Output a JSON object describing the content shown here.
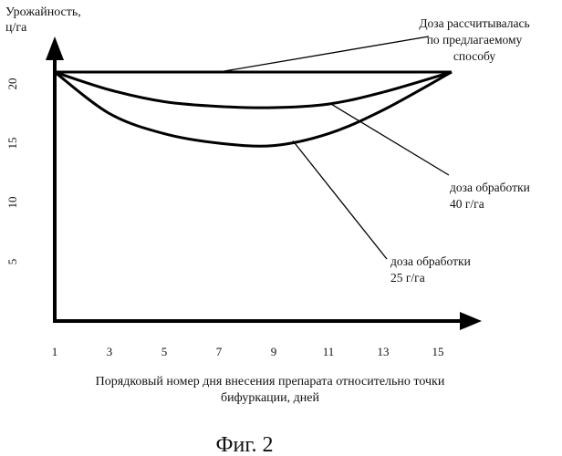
{
  "chart_data": {
    "type": "line",
    "ylabel": [
      "Урожайность,",
      "ц/га"
    ],
    "xlabel": [
      "Порядковый номер дня внесения препарата относительно точки",
      "бифуркации, дней"
    ],
    "x_ticks": [
      1,
      3,
      5,
      7,
      9,
      11,
      13,
      15
    ],
    "y_ticks": [
      5,
      10,
      15,
      20
    ],
    "xlim": [
      1,
      16
    ],
    "ylim": [
      0,
      24
    ],
    "series": [
      {
        "name": [
          "Доза рассчитывалась",
          "по предлагаемому",
          "способу"
        ],
        "x": [
          1,
          4,
          7,
          9,
          11,
          13,
          15.5
        ],
        "y": [
          21,
          21,
          21,
          21,
          21,
          21,
          21
        ]
      },
      {
        "name": [
          "доза обработки",
          "40 г/га"
        ],
        "x": [
          1,
          3,
          5,
          7,
          9,
          11,
          13,
          15.5
        ],
        "y": [
          21,
          19.5,
          18.5,
          18.1,
          18,
          18.3,
          19.3,
          21
        ]
      },
      {
        "name": [
          "доза обработки",
          "25 г/га"
        ],
        "x": [
          1,
          3,
          5,
          7,
          9,
          11,
          13,
          15.5
        ],
        "y": [
          21,
          17.5,
          15.8,
          15,
          14.8,
          15.8,
          17.8,
          21
        ]
      }
    ],
    "caption": "Фиг. 2"
  }
}
